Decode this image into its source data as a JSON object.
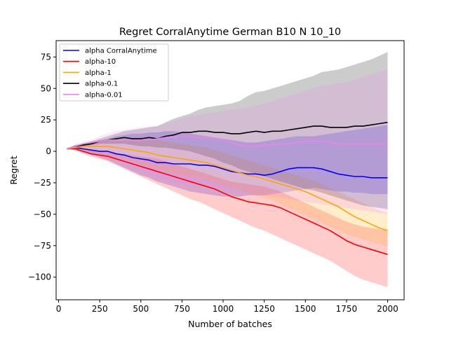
{
  "chart_data": {
    "type": "line",
    "title": "Regret CorralAnytime German B10 N 10_10",
    "xlabel": "Number of batches",
    "ylabel": "Regret",
    "xlim": [
      -15,
      2100
    ],
    "ylim": [
      -118,
      88
    ],
    "xticks": [
      0,
      250,
      500,
      750,
      1000,
      1250,
      1500,
      1750,
      2000
    ],
    "xtick_labels": [
      "0",
      "250",
      "500",
      "750",
      "1000",
      "1250",
      "1500",
      "1750",
      "2000"
    ],
    "yticks": [
      -100,
      -75,
      -50,
      -25,
      0,
      25,
      50,
      75
    ],
    "ytick_labels": [
      "−100",
      "−75",
      "−50",
      "−25",
      "0",
      "25",
      "50",
      "75"
    ],
    "grid": false,
    "legend_position": "upper-left",
    "x": [
      50,
      100,
      150,
      200,
      250,
      300,
      350,
      400,
      450,
      500,
      550,
      600,
      650,
      700,
      750,
      800,
      850,
      900,
      950,
      1000,
      1050,
      1100,
      1150,
      1200,
      1250,
      1300,
      1350,
      1400,
      1450,
      1500,
      1550,
      1600,
      1650,
      1700,
      1750,
      1800,
      1850,
      1900,
      1950,
      2000
    ],
    "series": [
      {
        "name": "alpha CorralAnytime",
        "color": "#0000ff",
        "values": [
          2,
          3,
          2,
          1,
          0,
          0,
          -2,
          -3,
          -5,
          -6,
          -7,
          -9,
          -9,
          -10,
          -10,
          -10,
          -11,
          -11,
          -12,
          -14,
          -16,
          -17,
          -18,
          -18,
          -19,
          -18,
          -16,
          -14,
          -13,
          -13,
          -13,
          -14,
          -16,
          -18,
          -19,
          -20,
          -20,
          -21,
          -21,
          -21
        ],
        "upper": [
          2,
          5,
          6,
          7,
          8,
          10,
          12,
          13,
          14,
          14,
          15,
          15,
          16,
          16,
          15,
          14,
          13,
          12,
          11,
          10,
          9,
          8,
          7,
          7,
          8,
          9,
          10,
          11,
          12,
          12,
          12,
          13,
          14,
          15,
          16,
          17,
          18,
          19,
          20,
          21
        ],
        "lower": [
          2,
          1,
          -1,
          -3,
          -5,
          -7,
          -10,
          -13,
          -16,
          -19,
          -21,
          -24,
          -26,
          -28,
          -30,
          -32,
          -33,
          -34,
          -35,
          -36,
          -36,
          -36,
          -35,
          -35,
          -35,
          -34,
          -33,
          -32,
          -31,
          -30,
          -29,
          -30,
          -31,
          -32,
          -32,
          -33,
          -33,
          -34,
          -34,
          -34
        ]
      },
      {
        "name": "alpha-10",
        "color": "#ff0000",
        "values": [
          2,
          2,
          0,
          -2,
          -3,
          -4,
          -6,
          -8,
          -10,
          -12,
          -14,
          -16,
          -18,
          -20,
          -22,
          -24,
          -26,
          -28,
          -30,
          -33,
          -36,
          -38,
          -40,
          -41,
          -42,
          -43,
          -45,
          -48,
          -51,
          -54,
          -57,
          -60,
          -63,
          -67,
          -71,
          -74,
          -76,
          -78,
          -80,
          -82
        ],
        "upper": [
          2,
          3,
          2,
          1,
          0,
          0,
          -1,
          -2,
          -3,
          -4,
          -5,
          -6,
          -8,
          -10,
          -12,
          -14,
          -16,
          -18,
          -20,
          -22,
          -24,
          -25,
          -26,
          -27,
          -28,
          -30,
          -32,
          -35,
          -38,
          -41,
          -44,
          -47,
          -50,
          -53,
          -56,
          -58,
          -60,
          -61,
          -62,
          -63
        ],
        "lower": [
          2,
          1,
          -2,
          -4,
          -6,
          -8,
          -11,
          -14,
          -17,
          -20,
          -23,
          -26,
          -29,
          -32,
          -35,
          -38,
          -40,
          -43,
          -46,
          -49,
          -52,
          -55,
          -58,
          -61,
          -63,
          -66,
          -69,
          -72,
          -75,
          -78,
          -81,
          -84,
          -87,
          -91,
          -95,
          -99,
          -102,
          -104,
          -106,
          -108
        ]
      },
      {
        "name": "alpha-1",
        "color": "#ffa500",
        "values": [
          2,
          3,
          4,
          4,
          4,
          4,
          3,
          2,
          1,
          0,
          -1,
          -3,
          -4,
          -5,
          -6,
          -7,
          -8,
          -9,
          -11,
          -13,
          -15,
          -17,
          -19,
          -20,
          -22,
          -24,
          -26,
          -28,
          -30,
          -32,
          -35,
          -38,
          -41,
          -44,
          -48,
          -52,
          -55,
          -58,
          -61,
          -63
        ],
        "upper": [
          2,
          4,
          6,
          8,
          9,
          10,
          10,
          10,
          10,
          10,
          9,
          9,
          8,
          7,
          6,
          5,
          4,
          3,
          1,
          -1,
          -3,
          -5,
          -7,
          -9,
          -11,
          -13,
          -15,
          -17,
          -19,
          -21,
          -23,
          -26,
          -29,
          -32,
          -35,
          -38,
          -41,
          -44,
          -47,
          -49
        ],
        "lower": [
          2,
          2,
          1,
          -1,
          -2,
          -3,
          -4,
          -6,
          -8,
          -10,
          -12,
          -14,
          -16,
          -18,
          -19,
          -20,
          -21,
          -23,
          -25,
          -27,
          -29,
          -31,
          -33,
          -35,
          -37,
          -39,
          -42,
          -45,
          -48,
          -51,
          -54,
          -57,
          -60,
          -63,
          -66,
          -68,
          -70,
          -72,
          -74,
          -76
        ]
      },
      {
        "name": "alpha-0.1",
        "color": "#000000",
        "values": [
          2,
          4,
          5,
          6,
          8,
          9,
          10,
          11,
          10,
          10,
          11,
          10,
          12,
          13,
          15,
          15,
          16,
          16,
          15,
          15,
          14,
          14,
          15,
          16,
          15,
          16,
          16,
          17,
          18,
          19,
          20,
          20,
          19,
          19,
          19,
          20,
          20,
          21,
          22,
          23
        ],
        "upper": [
          2,
          5,
          6,
          8,
          10,
          12,
          14,
          16,
          17,
          18,
          19,
          20,
          23,
          26,
          28,
          30,
          33,
          35,
          36,
          37,
          38,
          40,
          44,
          47,
          48,
          50,
          52,
          54,
          56,
          58,
          60,
          63,
          64,
          65,
          67,
          69,
          71,
          73,
          76,
          79
        ],
        "lower": [
          2,
          3,
          4,
          5,
          6,
          6,
          6,
          6,
          5,
          4,
          4,
          3,
          3,
          2,
          1,
          0,
          -2,
          -4,
          -6,
          -9,
          -11,
          -14,
          -16,
          -18,
          -20,
          -22,
          -24,
          -26,
          -28,
          -30,
          -31,
          -33,
          -35,
          -37,
          -39,
          -41,
          -43,
          -44,
          -45,
          -46
        ]
      },
      {
        "name": "alpha-0.01",
        "color": "#ee82ee",
        "values": [
          2,
          4,
          6,
          7,
          8,
          9,
          9,
          9,
          9,
          9,
          9,
          10,
          11,
          11,
          12,
          12,
          11,
          11,
          10,
          9,
          7,
          5,
          4,
          4,
          5,
          5,
          6,
          6,
          7,
          8,
          8,
          8,
          7,
          6,
          6,
          6,
          6,
          6,
          6,
          6
        ],
        "upper": [
          2,
          5,
          7,
          9,
          12,
          14,
          16,
          17,
          18,
          19,
          20,
          20,
          22,
          24,
          26,
          28,
          29,
          30,
          31,
          32,
          33,
          34,
          35,
          36,
          38,
          40,
          42,
          44,
          46,
          48,
          50,
          52,
          53,
          54,
          55,
          57,
          59,
          61,
          63,
          65
        ],
        "lower": [
          2,
          2,
          1,
          -1,
          -3,
          -5,
          -7,
          -10,
          -13,
          -16,
          -18,
          -21,
          -23,
          -25,
          -26,
          -26,
          -27,
          -28,
          -29,
          -30,
          -31,
          -32,
          -33,
          -34,
          -35,
          -36,
          -37,
          -38,
          -39,
          -40,
          -41,
          -42,
          -43,
          -44,
          -45,
          -46,
          -47,
          -48,
          -49,
          -50
        ]
      }
    ]
  }
}
